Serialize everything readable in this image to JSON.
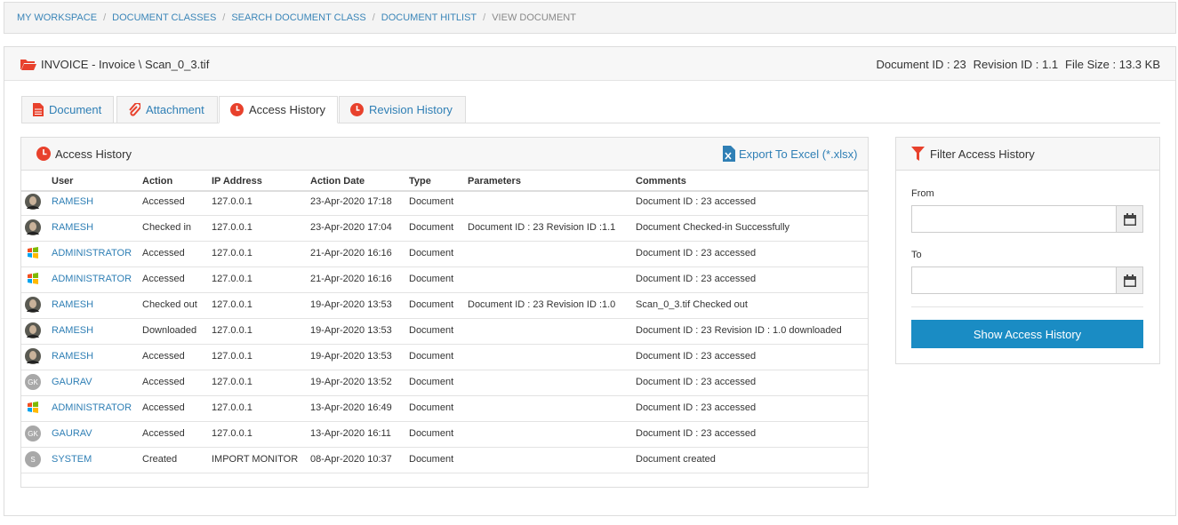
{
  "breadcrumb": [
    "MY WORKSPACE",
    "DOCUMENT CLASSES",
    "SEARCH DOCUMENT CLASS",
    "DOCUMENT HITLIST",
    "VIEW DOCUMENT"
  ],
  "header": {
    "title": "INVOICE - Invoice \\ Scan_0_3.tif",
    "document_id": "Document ID : 23",
    "revision_id": "Revision ID : 1.1",
    "file_size": "File Size : 13.3 KB"
  },
  "tabs": [
    "Document",
    "Attachment",
    "Access History",
    "Revision History"
  ],
  "panel": {
    "title": "Access History",
    "export": "Export To Excel (*.xlsx)"
  },
  "table": {
    "columns": [
      "User",
      "Action",
      "IP Address",
      "Action Date",
      "Type",
      "Parameters",
      "Comments"
    ],
    "rows": [
      {
        "user": "RAMESH",
        "action": "Accessed",
        "ip": "127.0.0.1",
        "date": "23-Apr-2020 17:18",
        "type": "Document",
        "comments": "Document ID : 23 accessed"
      },
      {
        "user": "RAMESH",
        "action": "Checked in",
        "ip": "127.0.0.1",
        "date": "23-Apr-2020 17:04",
        "type": "Document",
        "parameters": "Document ID : 23 Revision ID :1.1",
        "comments": "Document Checked-in Successfully"
      },
      {
        "user": "ADMINISTRATOR",
        "action": "Accessed",
        "ip": "127.0.0.1",
        "date": "21-Apr-2020 16:16",
        "type": "Document",
        "comments": "Document ID : 23 accessed"
      },
      {
        "user": "ADMINISTRATOR",
        "action": "Accessed",
        "ip": "127.0.0.1",
        "date": "21-Apr-2020 16:16",
        "type": "Document",
        "comments": "Document ID : 23 accessed"
      },
      {
        "user": "RAMESH",
        "action": "Checked out",
        "ip": "127.0.0.1",
        "date": "19-Apr-2020 13:53",
        "type": "Document",
        "parameters": "Document ID : 23 Revision ID :1.0",
        "comments": "Scan_0_3.tif Checked out"
      },
      {
        "user": "RAMESH",
        "action": "Downloaded",
        "ip": "127.0.0.1",
        "date": "19-Apr-2020 13:53",
        "type": "Document",
        "comments": "Document ID : 23 Revision ID : 1.0 downloaded"
      },
      {
        "user": "RAMESH",
        "action": "Accessed",
        "ip": "127.0.0.1",
        "date": "19-Apr-2020 13:53",
        "type": "Document",
        "comments": "Document ID : 23 accessed"
      },
      {
        "avatar": "GK",
        "user": "GAURAV",
        "action": "Accessed",
        "ip": "127.0.0.1",
        "date": "19-Apr-2020 13:52",
        "type": "Document",
        "comments": "Document ID : 23 accessed"
      },
      {
        "user": "ADMINISTRATOR",
        "action": "Accessed",
        "ip": "127.0.0.1",
        "date": "13-Apr-2020 16:49",
        "type": "Document",
        "comments": "Document ID : 23 accessed"
      },
      {
        "avatar": "GK",
        "user": "GAURAV",
        "action": "Accessed",
        "ip": "127.0.0.1",
        "date": "13-Apr-2020 16:11",
        "type": "Document",
        "comments": "Document ID : 23 accessed"
      },
      {
        "avatar": "S",
        "user": "SYSTEM",
        "action": "Created",
        "ip": "IMPORT MONITOR",
        "date": "08-Apr-2020 10:37",
        "type": "Document",
        "comments": "Document created"
      }
    ]
  },
  "filter": {
    "title": "Filter Access History",
    "from": "From",
    "to": "To",
    "button": "Show Access History"
  }
}
